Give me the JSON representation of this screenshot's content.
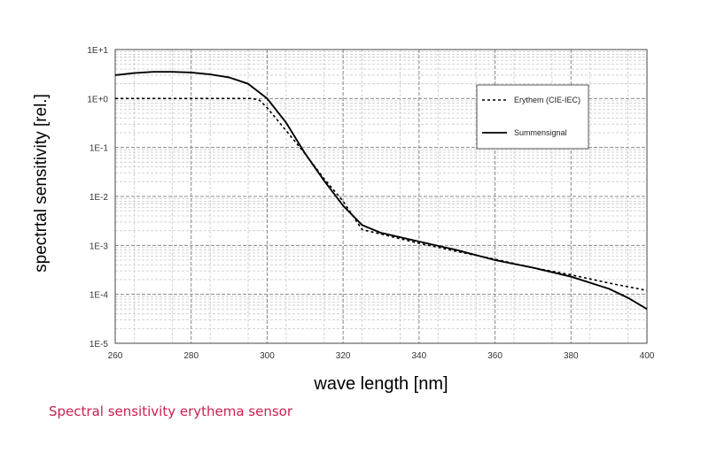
{
  "chart_data": {
    "type": "line",
    "xlabel": "wave length [nm]",
    "ylabel": "spectrtal sensitivity [rel.]",
    "xlim": [
      260,
      400
    ],
    "ylim": [
      1e-05,
      10
    ],
    "y_scale": "log",
    "x_ticks": [
      260,
      280,
      300,
      320,
      340,
      360,
      380,
      400
    ],
    "x_tick_labels": [
      "260",
      "280",
      "300",
      "320",
      "340",
      "360",
      "380",
      "400"
    ],
    "y_ticks": [
      1e-05,
      0.0001,
      0.001,
      0.01,
      0.1,
      1,
      10
    ],
    "y_tick_labels": [
      "1E-5",
      "1E-4",
      "1E-3",
      "1E-2",
      "1E-1",
      "1E+0",
      "1E+1"
    ],
    "grid": true,
    "legend_position": "top-right",
    "series": [
      {
        "name": "Erythem (CIE-IEC)",
        "style": "dotted",
        "color": "#000000",
        "x": [
          260,
          270,
          280,
          290,
          296,
          298,
          300,
          305,
          310,
          315,
          320,
          325,
          330,
          340,
          350,
          360,
          370,
          380,
          390,
          400
        ],
        "y": [
          1.0,
          1.0,
          1.0,
          1.0,
          1.0,
          0.92,
          0.65,
          0.22,
          0.074,
          0.023,
          0.008,
          0.0021,
          0.0017,
          0.0011,
          0.00075,
          0.00052,
          0.00035,
          0.00025,
          0.00017,
          0.00012
        ]
      },
      {
        "name": "Summensignal",
        "style": "solid",
        "color": "#000000",
        "x": [
          260,
          265,
          270,
          275,
          280,
          285,
          290,
          295,
          300,
          305,
          310,
          315,
          320,
          325,
          330,
          340,
          350,
          360,
          370,
          380,
          390,
          395,
          400
        ],
        "y": [
          3.0,
          3.3,
          3.5,
          3.5,
          3.4,
          3.1,
          2.7,
          2.0,
          1.0,
          0.32,
          0.075,
          0.021,
          0.0065,
          0.0026,
          0.0018,
          0.0012,
          0.0008,
          0.0005,
          0.00035,
          0.00023,
          0.00013,
          8.5e-05,
          5e-05
        ]
      }
    ]
  },
  "caption": "Spectral sensitivity erythema sensor"
}
